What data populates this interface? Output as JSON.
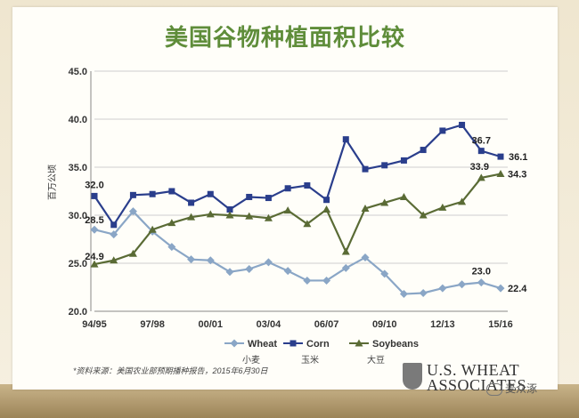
{
  "chart_data": {
    "type": "line",
    "title": "美国谷物种植面积比较",
    "ylabel": "百万公顷",
    "xlabel": "",
    "ylim": [
      20,
      45
    ],
    "yticks": [
      "20.0",
      "25.0",
      "30.0",
      "35.0",
      "40.0",
      "45.0"
    ],
    "xtick_labels": [
      "94/95",
      "97/98",
      "00/01",
      "03/04",
      "06/07",
      "09/10",
      "12/13",
      "15/16"
    ],
    "xtick_indices": [
      0,
      3,
      6,
      9,
      12,
      15,
      18,
      21
    ],
    "grid": true,
    "legend": "bottom",
    "series": [
      {
        "name": "Wheat",
        "subname": "小麦",
        "color": "#8aa6c6",
        "marker": "diamond",
        "values": [
          28.5,
          28.0,
          30.4,
          28.3,
          26.7,
          25.4,
          25.3,
          24.1,
          24.4,
          25.1,
          24.2,
          23.2,
          23.2,
          24.5,
          25.6,
          23.9,
          21.8,
          21.9,
          22.4,
          22.8,
          23.0,
          22.4
        ]
      },
      {
        "name": "Corn",
        "subname": "玉米",
        "color": "#2a3e8c",
        "marker": "square",
        "values": [
          32.0,
          29.0,
          32.1,
          32.2,
          32.5,
          31.3,
          32.2,
          30.6,
          31.9,
          31.8,
          32.8,
          33.1,
          31.6,
          37.9,
          34.8,
          35.2,
          35.7,
          36.8,
          38.8,
          39.4,
          36.7,
          36.1
        ]
      },
      {
        "name": "Soybeans",
        "subname": "大豆",
        "color": "#5a6b35",
        "marker": "triangle",
        "values": [
          24.9,
          25.3,
          26.0,
          28.5,
          29.2,
          29.8,
          30.1,
          30.0,
          29.9,
          29.7,
          30.5,
          29.1,
          30.6,
          26.2,
          30.7,
          31.3,
          31.9,
          30.0,
          30.8,
          31.4,
          33.9,
          34.3
        ]
      }
    ],
    "annotations": [
      {
        "series": 0,
        "index": 0,
        "text": "28.5"
      },
      {
        "series": 0,
        "index": 20,
        "text": "23.0"
      },
      {
        "series": 0,
        "index": 21,
        "text": "22.4"
      },
      {
        "series": 1,
        "index": 0,
        "text": "32.0"
      },
      {
        "series": 1,
        "index": 20,
        "text": "36.7"
      },
      {
        "series": 1,
        "index": 21,
        "text": "36.1"
      },
      {
        "series": 2,
        "index": 0,
        "text": "24.9"
      },
      {
        "series": 2,
        "index": 20,
        "text": "33.9"
      },
      {
        "series": 2,
        "index": 21,
        "text": "34.3"
      }
    ]
  },
  "source_note": "*资料来源：美国农业部预期播种报告，2015年6月30日",
  "logo": {
    "line1": "U.S. WHEAT",
    "line2": "ASSOCIATES"
  },
  "watermark": "麦众涿"
}
